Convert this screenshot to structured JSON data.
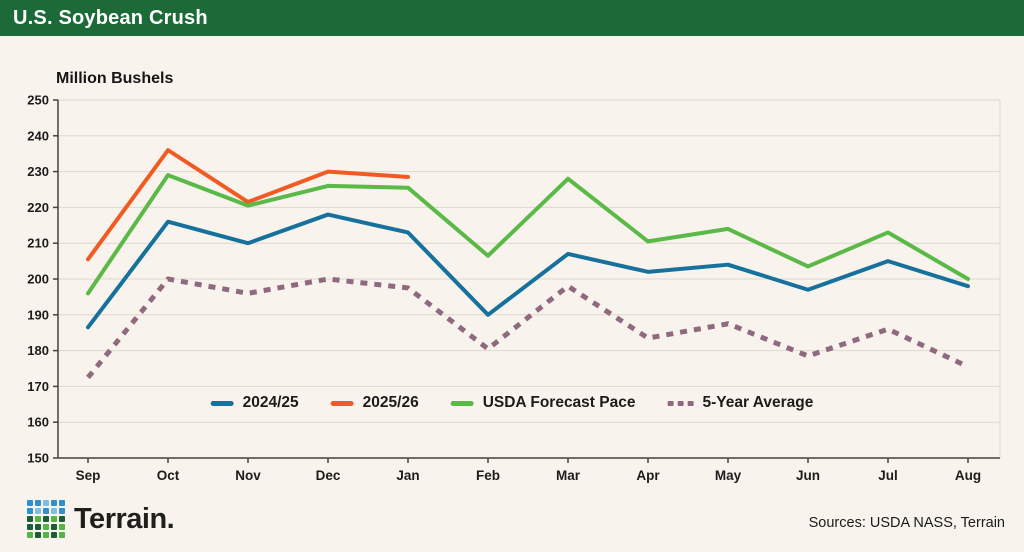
{
  "header": {
    "title": "U.S. Soybean Crush"
  },
  "chart_data": {
    "type": "line",
    "title": "U.S. Soybean Crush",
    "ylabel": "Million Bushels",
    "xlabel": "",
    "ylim": [
      150,
      250
    ],
    "ytick_step": 10,
    "grid": "horizontal",
    "legend_position": "bottom-center-inside",
    "categories": [
      "Sep",
      "Oct",
      "Nov",
      "Dec",
      "Jan",
      "Feb",
      "Mar",
      "Apr",
      "May",
      "Jun",
      "Jul",
      "Aug"
    ],
    "series": [
      {
        "name": "2024/25",
        "color": "#17719d",
        "style": "solid",
        "values": [
          186.5,
          216,
          210,
          218,
          213,
          190,
          207,
          202,
          204,
          197,
          205,
          198
        ]
      },
      {
        "name": "2025/26",
        "color": "#f15a22",
        "style": "solid",
        "values": [
          205.5,
          236,
          221.5,
          230,
          228.5,
          null,
          null,
          null,
          null,
          null,
          null,
          null
        ]
      },
      {
        "name": "USDA Forecast Pace",
        "color": "#5ab947",
        "style": "solid",
        "values": [
          196,
          229,
          220.5,
          226,
          225.5,
          206.5,
          228,
          210.5,
          214,
          203.5,
          213,
          200
        ]
      },
      {
        "name": "5-Year Average",
        "color": "#8f6a7e",
        "style": "dashed",
        "values": [
          172.5,
          200,
          196,
          200,
          197.5,
          180.5,
          198,
          183.5,
          187.5,
          178.5,
          186,
          175.5
        ]
      }
    ]
  },
  "colors": {
    "header_bg": "#1d6a39",
    "background": "#f8f3ec",
    "gridline": "#ddd8d0",
    "axis": "#45433d"
  },
  "footer": {
    "brand": "Terrain.",
    "sources": "Sources: USDA NASS, Terrain",
    "logo_grid": [
      [
        "#2e8fd1",
        "#2e8fd1",
        "#79bfe8",
        "#2e8fd1",
        "#2e8fd1"
      ],
      [
        "#2e8fd1",
        "#79bfe8",
        "#2e8fd1",
        "#79bfe8",
        "#2e8fd1"
      ],
      [
        "#1c5c38",
        "#56b447",
        "#1c5c38",
        "#56b447",
        "#1c5c38"
      ],
      [
        "#1c5c38",
        "#1c5c38",
        "#56b447",
        "#1c5c38",
        "#56b447"
      ],
      [
        "#56b447",
        "#1c5c38",
        "#56b447",
        "#1c5c38",
        "#56b447"
      ]
    ]
  }
}
